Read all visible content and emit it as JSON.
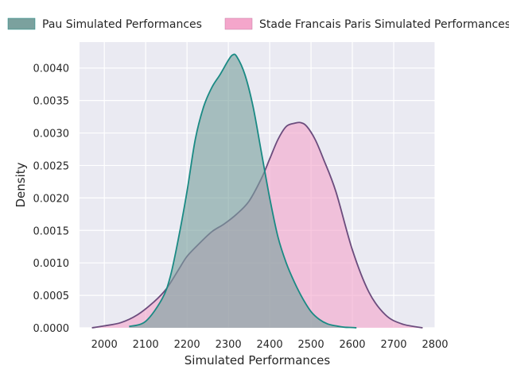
{
  "chart_data": {
    "type": "area",
    "xlabel": "Simulated Performances",
    "ylabel": "Density",
    "xlim": [
      1940,
      2800
    ],
    "ylim": [
      0,
      0.0044
    ],
    "grid": true,
    "legend_position": "top",
    "x_ticks": [
      2000,
      2100,
      2200,
      2300,
      2400,
      2500,
      2600,
      2700,
      2800
    ],
    "x_tick_labels": [
      "2000",
      "2100",
      "2200",
      "2300",
      "2400",
      "2500",
      "2600",
      "2700",
      "2800"
    ],
    "y_ticks": [
      0,
      0.0005,
      0.001,
      0.0015,
      0.002,
      0.0025,
      0.003,
      0.0035,
      0.004
    ],
    "y_tick_labels": [
      "0.0000",
      "0.0005",
      "0.0010",
      "0.0015",
      "0.0020",
      "0.0025",
      "0.0030",
      "0.0035",
      "0.0040"
    ],
    "series": [
      {
        "name": "Pau Simulated Performances",
        "fill": "#7ba19e",
        "line": "#1a8a84",
        "x": [
          2060,
          2100,
          2140,
          2160,
          2180,
          2200,
          2220,
          2240,
          2260,
          2280,
          2300,
          2310,
          2320,
          2340,
          2360,
          2380,
          2400,
          2420,
          2440,
          2460,
          2480,
          2500,
          2520,
          2540,
          2560,
          2580,
          2600,
          2610
        ],
        "y": [
          2e-05,
          0.0001,
          0.00045,
          0.0008,
          0.0014,
          0.0021,
          0.0029,
          0.0034,
          0.0037,
          0.0039,
          0.00412,
          0.0042,
          0.00418,
          0.0039,
          0.0034,
          0.0027,
          0.002,
          0.0014,
          0.001,
          0.0007,
          0.00045,
          0.00025,
          0.00013,
          6e-05,
          3e-05,
          1e-05,
          5e-06,
          0
        ]
      },
      {
        "name": "Stade Francais Paris Simulated Performances",
        "fill": "#f4a6cb",
        "line": "#6b4c7d",
        "x": [
          1970,
          2000,
          2040,
          2080,
          2120,
          2150,
          2180,
          2200,
          2230,
          2260,
          2290,
          2320,
          2350,
          2380,
          2400,
          2420,
          2440,
          2460,
          2475,
          2490,
          2510,
          2530,
          2560,
          2600,
          2640,
          2680,
          2720,
          2770
        ],
        "y": [
          0,
          3e-05,
          8e-05,
          0.0002,
          0.0004,
          0.0006,
          0.0009,
          0.0011,
          0.0013,
          0.00148,
          0.0016,
          0.00175,
          0.00195,
          0.0023,
          0.0026,
          0.0029,
          0.0031,
          0.00315,
          0.00316,
          0.0031,
          0.0029,
          0.0026,
          0.0021,
          0.0012,
          0.00055,
          0.0002,
          6e-05,
          0
        ]
      }
    ]
  }
}
